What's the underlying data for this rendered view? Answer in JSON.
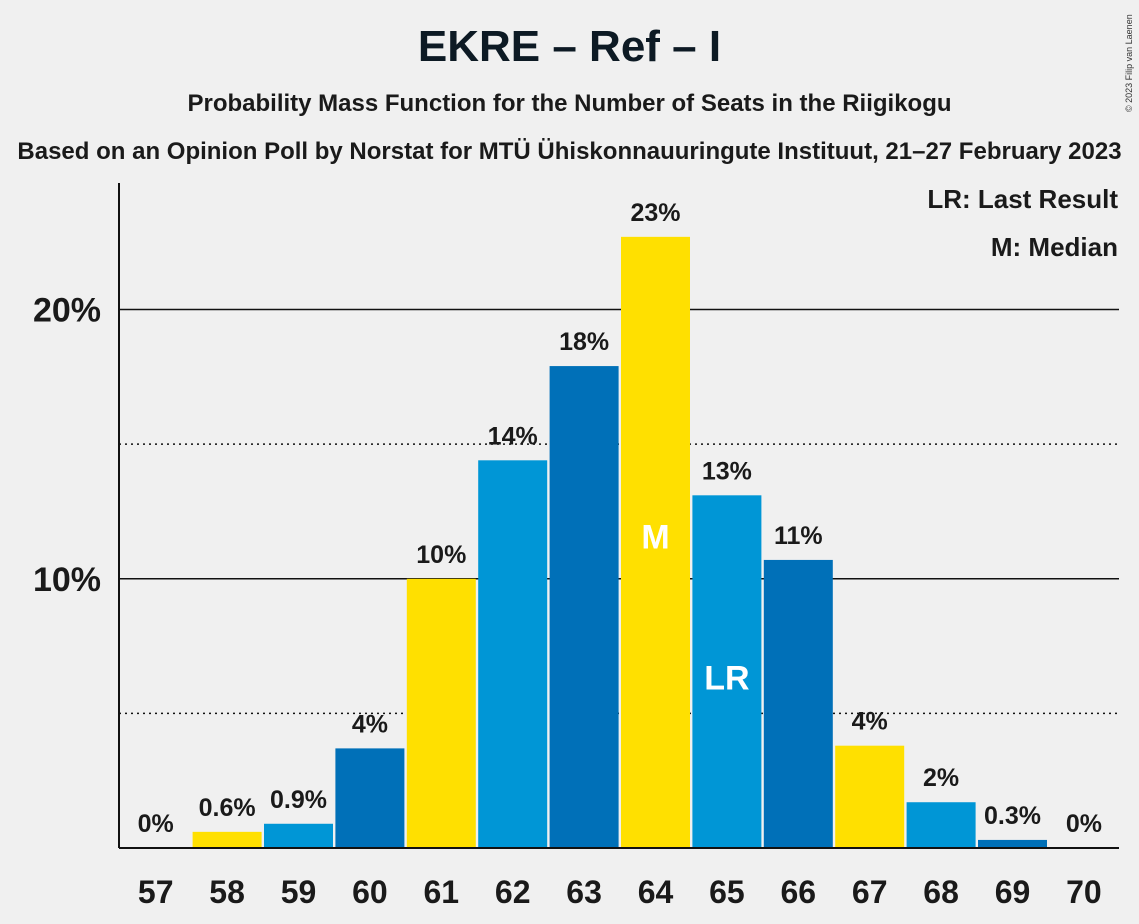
{
  "title": "EKRE – Ref – I",
  "subtitle": "Probability Mass Function for the Number of Seats in the Riigikogu",
  "source": "Based on an Opinion Poll by Norstat for MTÜ Ühiskonnauuringute Instituut, 21–27 February 2023",
  "copyright": "© 2023 Filip van Laenen",
  "legend": {
    "last_result": "LR: Last Result",
    "median": "M: Median"
  },
  "colors": {
    "yellow": "#ffe000",
    "light_blue": "#0096d6",
    "dark_blue": "#0070b8",
    "background": "#f0f0f0"
  },
  "chart_data": {
    "type": "bar",
    "categories": [
      "57",
      "58",
      "59",
      "60",
      "61",
      "62",
      "63",
      "64",
      "65",
      "66",
      "67",
      "68",
      "69",
      "70"
    ],
    "values": [
      0,
      0.6,
      0.9,
      3.7,
      10.0,
      14.4,
      17.9,
      22.7,
      13.1,
      10.7,
      3.8,
      1.7,
      0.3,
      0
    ],
    "data_labels": [
      "0%",
      "0.6%",
      "0.9%",
      "4%",
      "10%",
      "14%",
      "18%",
      "23%",
      "13%",
      "11%",
      "4%",
      "2%",
      "0.3%",
      "0%"
    ],
    "bar_colors": [
      "yellow",
      "yellow",
      "light_blue",
      "dark_blue",
      "yellow",
      "light_blue",
      "dark_blue",
      "yellow",
      "light_blue",
      "dark_blue",
      "yellow",
      "light_blue",
      "dark_blue",
      "yellow"
    ],
    "y_ticks": [
      10,
      20
    ],
    "y_tick_labels": [
      "10%",
      "20%"
    ],
    "ylim": [
      0,
      24.7
    ],
    "median_category": "64",
    "median_label": "M",
    "last_result_category": "65",
    "last_result_label": "LR"
  }
}
